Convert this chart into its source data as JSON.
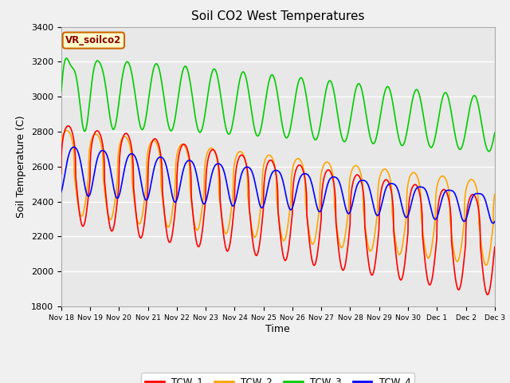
{
  "title": "Soil CO2 West Temperatures",
  "xlabel": "Time",
  "ylabel": "Soil Temperature (C)",
  "ylim": [
    1800,
    3400
  ],
  "yticks": [
    1800,
    2000,
    2200,
    2400,
    2600,
    2800,
    3000,
    3200,
    3400
  ],
  "xtick_labels": [
    "Nov 18",
    "Nov 19",
    "Nov 20",
    "Nov 21",
    "Nov 22",
    "Nov 23",
    "Nov 24",
    "Nov 25",
    "Nov 26",
    "Nov 27",
    "Nov 28",
    "Nov 29",
    "Nov 30",
    "Dec 1",
    "Dec 2",
    "Dec 3"
  ],
  "colors": {
    "TCW_1": "#ff0000",
    "TCW_2": "#ffa500",
    "TCW_3": "#00cc00",
    "TCW_4": "#0000ff"
  },
  "annotation_label": "VR_soilco2",
  "annotation_bg": "#ffffcc",
  "annotation_border": "#cc6600",
  "annotation_text_color": "#8b0000",
  "bg_color": "#e8e8e8",
  "grid_color": "#ffffff",
  "line_width": 1.2,
  "num_points": 2000
}
